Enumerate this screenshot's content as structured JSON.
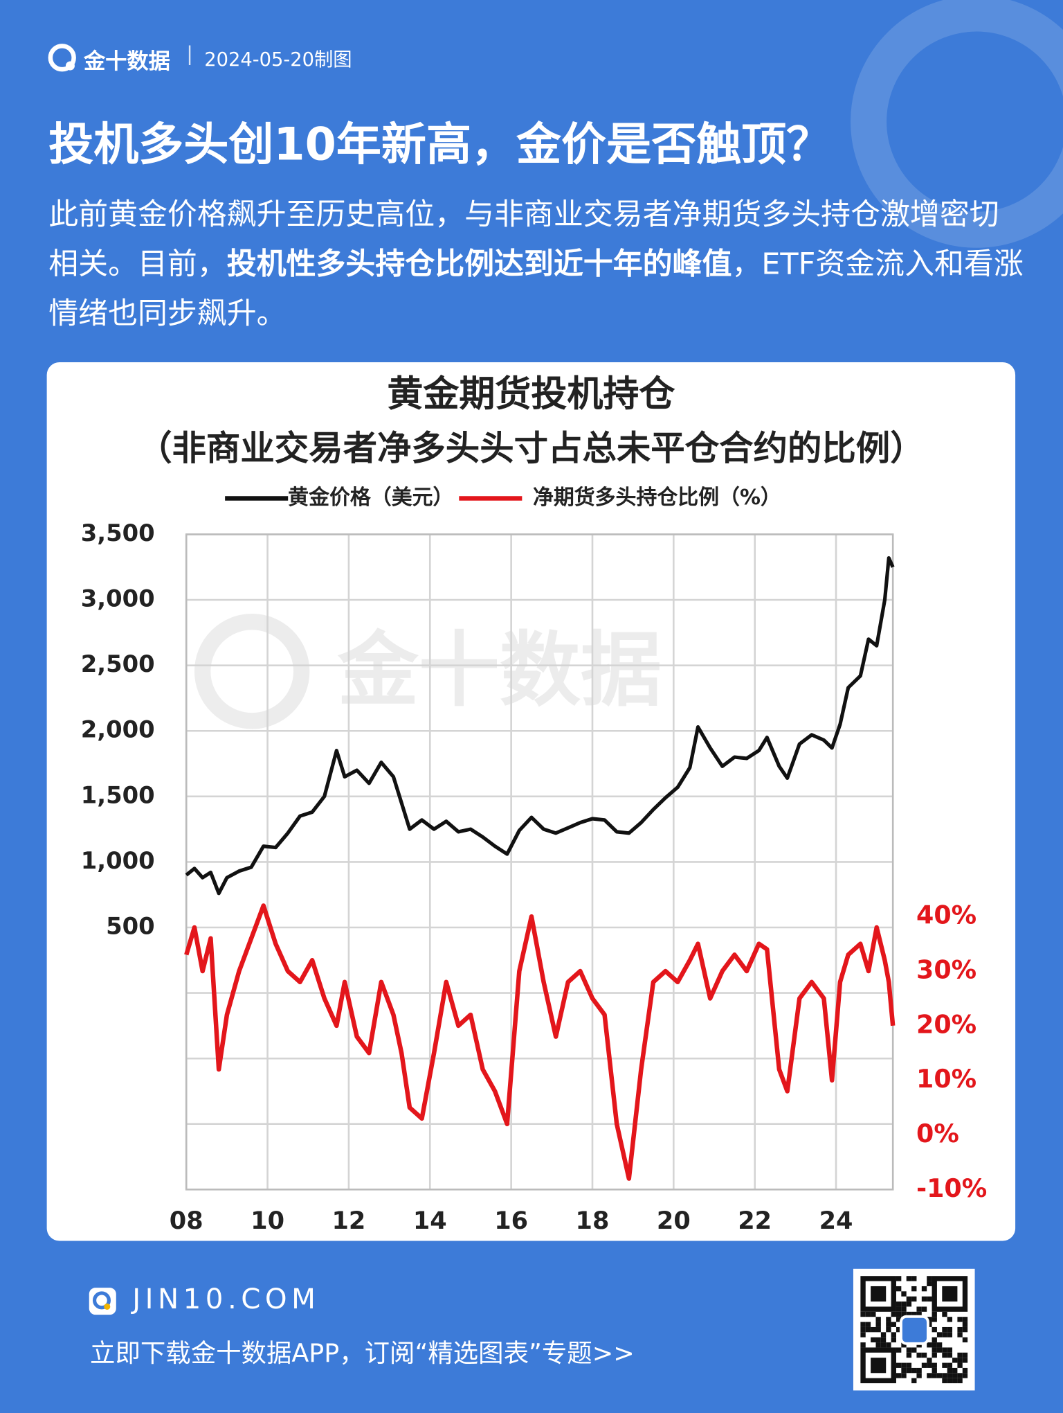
{
  "header": {
    "brand": "金十数据",
    "date": "2024-05-20制图",
    "title": "投机多头创10年新高，金价是否触顶？",
    "description": {
      "before": "此前黄金价格飙升至历史高位，与非商业交易者净期货多头持仓激增密切相关。目前，",
      "bold": "投机性多头持仓比例达到近十年的峰值",
      "after": "，ETF资金流入和看涨情绪也同步飙升。"
    }
  },
  "chart_data": {
    "type": "line",
    "title": "黄金期货投机持仓",
    "subtitle": "（非商业交易者净多头头寸占总未平仓合约的比例）",
    "x": [
      2008.0,
      2008.2,
      2008.4,
      2008.6,
      2008.8,
      2009.0,
      2009.3,
      2009.6,
      2009.9,
      2010.2,
      2010.5,
      2010.8,
      2011.1,
      2011.4,
      2011.7,
      2011.9,
      2012.2,
      2012.5,
      2012.8,
      2013.1,
      2013.3,
      2013.5,
      2013.8,
      2014.1,
      2014.4,
      2014.7,
      2015.0,
      2015.3,
      2015.6,
      2015.9,
      2016.2,
      2016.5,
      2016.8,
      2017.1,
      2017.4,
      2017.7,
      2018.0,
      2018.3,
      2018.6,
      2018.9,
      2019.2,
      2019.5,
      2019.8,
      2020.1,
      2020.4,
      2020.6,
      2020.9,
      2021.2,
      2021.5,
      2021.8,
      2022.1,
      2022.3,
      2022.6,
      2022.8,
      2023.1,
      2023.4,
      2023.7,
      2023.9,
      2024.1,
      2024.3,
      2024.6,
      2024.8,
      2025.0,
      2025.2,
      2025.3,
      2025.4
    ],
    "series": [
      {
        "name": "黄金价格（美元）",
        "color": "#111111",
        "values": [
          900,
          950,
          880,
          920,
          760,
          880,
          930,
          960,
          1120,
          1110,
          1220,
          1350,
          1380,
          1500,
          1850,
          1650,
          1700,
          1600,
          1760,
          1650,
          1450,
          1250,
          1320,
          1250,
          1310,
          1230,
          1250,
          1190,
          1120,
          1060,
          1240,
          1340,
          1250,
          1220,
          1260,
          1300,
          1330,
          1320,
          1230,
          1220,
          1300,
          1400,
          1490,
          1570,
          1720,
          2030,
          1870,
          1730,
          1800,
          1790,
          1850,
          1950,
          1730,
          1640,
          1900,
          1970,
          1930,
          1870,
          2050,
          2330,
          2420,
          2700,
          2650,
          3000,
          3320,
          3250
        ]
      },
      {
        "name": "净期货多头持仓比例（%）",
        "color": "#e3161b",
        "axis": "y2",
        "values": [
          33,
          38,
          30,
          36,
          12,
          22,
          30,
          36,
          42,
          35,
          30,
          28,
          32,
          25,
          20,
          28,
          18,
          15,
          28,
          22,
          15,
          5,
          3,
          15,
          28,
          20,
          22,
          12,
          8,
          2,
          30,
          40,
          28,
          18,
          28,
          30,
          25,
          22,
          2,
          -8,
          12,
          28,
          30,
          28,
          32,
          35,
          25,
          30,
          33,
          30,
          35,
          34,
          12,
          8,
          25,
          28,
          25,
          10,
          28,
          33,
          35,
          30,
          38,
          32,
          28,
          20
        ]
      }
    ],
    "xlim": [
      2008,
      2025.4
    ],
    "xticks": [
      {
        "value": 2008,
        "label": "08"
      },
      {
        "value": 2010,
        "label": "10"
      },
      {
        "value": 2012,
        "label": "12"
      },
      {
        "value": 2014,
        "label": "14"
      },
      {
        "value": 2016,
        "label": "16"
      },
      {
        "value": 2018,
        "label": "18"
      },
      {
        "value": 2020,
        "label": "20"
      },
      {
        "value": 2022,
        "label": "22"
      },
      {
        "value": 2024,
        "label": "24"
      }
    ],
    "ylim": [
      -1500,
      3500
    ],
    "yticks": [
      500,
      {
        "value": 1000,
        "label": "1,000"
      },
      {
        "value": 1500,
        "label": "1,500"
      },
      {
        "value": 2000,
        "label": "2,000"
      },
      {
        "value": 2500,
        "label": "2,500"
      },
      {
        "value": 3000,
        "label": "3,000"
      },
      {
        "value": 3500,
        "label": "3,500"
      }
    ],
    "ygrid": [
      -1000,
      -500,
      0,
      500,
      1000,
      1500,
      2000,
      2500,
      3000,
      3500
    ],
    "y2lim": [
      -10,
      110
    ],
    "y2ticks": [
      {
        "value": -10,
        "label": "-10%"
      },
      {
        "value": 0,
        "label": "0%"
      },
      {
        "value": 10,
        "label": "10%"
      },
      {
        "value": 20,
        "label": "20%"
      },
      {
        "value": 30,
        "label": "30%"
      },
      {
        "value": 40,
        "label": "40%"
      }
    ],
    "grid": true
  },
  "footer": {
    "site": "JIN10.COM",
    "promo": "立即下载金十数据APP，订阅“精选图表”专题>>"
  }
}
